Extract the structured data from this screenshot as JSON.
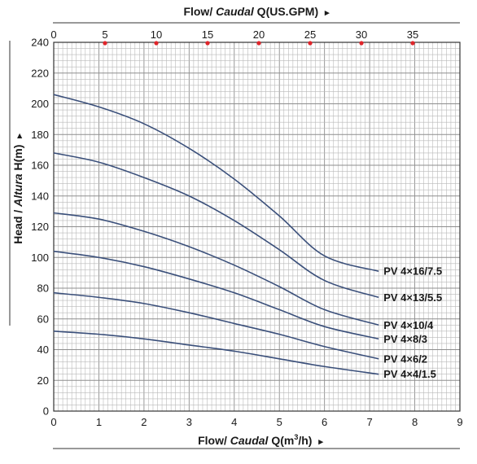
{
  "chart_data": {
    "type": "line",
    "title": "",
    "xlabel": {
      "prefix": "Flow/ ",
      "italic": "Caudal",
      "suffix": " Q(m",
      "sup": "3",
      "tail": "/h)",
      "arrow": "▸"
    },
    "x2label": {
      "prefix": "Flow/ ",
      "italic": "Caudal",
      "suffix": " Q(US.GPM)",
      "arrow": "▸"
    },
    "ylabel": {
      "prefix": "Head / ",
      "italic": "Altura",
      "suffix": " H(m)",
      "arrow": "▸"
    },
    "xlim": [
      0,
      9
    ],
    "ylim": [
      0,
      240
    ],
    "x2lim": [
      0,
      39.6
    ],
    "xticks": [
      "0",
      "1",
      "2",
      "3",
      "4",
      "5",
      "6",
      "7",
      "8",
      "9"
    ],
    "x2ticks": [
      "0",
      "5",
      "10",
      "15",
      "20",
      "25",
      "30",
      "35"
    ],
    "yticks": [
      "0",
      "20",
      "40",
      "60",
      "80",
      "100",
      "120",
      "140",
      "160",
      "180",
      "200",
      "220",
      "240"
    ],
    "grid": true,
    "marker_color": "#e0262b",
    "curve_color": "#3a4f7a",
    "series": [
      {
        "name": "PV 4×16/7.5",
        "x": [
          0,
          1,
          2,
          3,
          4,
          5,
          6,
          7.2
        ],
        "y": [
          206,
          198,
          187,
          171,
          151,
          127,
          101,
          91
        ]
      },
      {
        "name": "PV 4×13/5.5",
        "x": [
          0,
          1,
          2,
          3,
          4,
          5,
          6,
          7.2
        ],
        "y": [
          168,
          162,
          152,
          140,
          124,
          105,
          85,
          74
        ]
      },
      {
        "name": "PV 4×10/4",
        "x": [
          0,
          1,
          2,
          3,
          4,
          5,
          6,
          7.2
        ],
        "y": [
          129,
          125,
          117,
          107,
          95,
          81,
          66,
          56
        ]
      },
      {
        "name": "PV 4×8/3",
        "x": [
          0,
          1,
          2,
          3,
          4,
          5,
          6,
          7.2
        ],
        "y": [
          104,
          100,
          94,
          86,
          77,
          66,
          55,
          47
        ]
      },
      {
        "name": "PV 4×6/2",
        "x": [
          0,
          1,
          2,
          3,
          4,
          5,
          6,
          7.2
        ],
        "y": [
          77,
          74,
          70,
          64,
          57,
          50,
          42,
          34
        ]
      },
      {
        "name": "PV 4×4/1.5",
        "x": [
          0,
          1,
          2,
          3,
          4,
          5,
          6,
          7.2
        ],
        "y": [
          52,
          50,
          47,
          43,
          39,
          34,
          29,
          24
        ]
      }
    ]
  }
}
